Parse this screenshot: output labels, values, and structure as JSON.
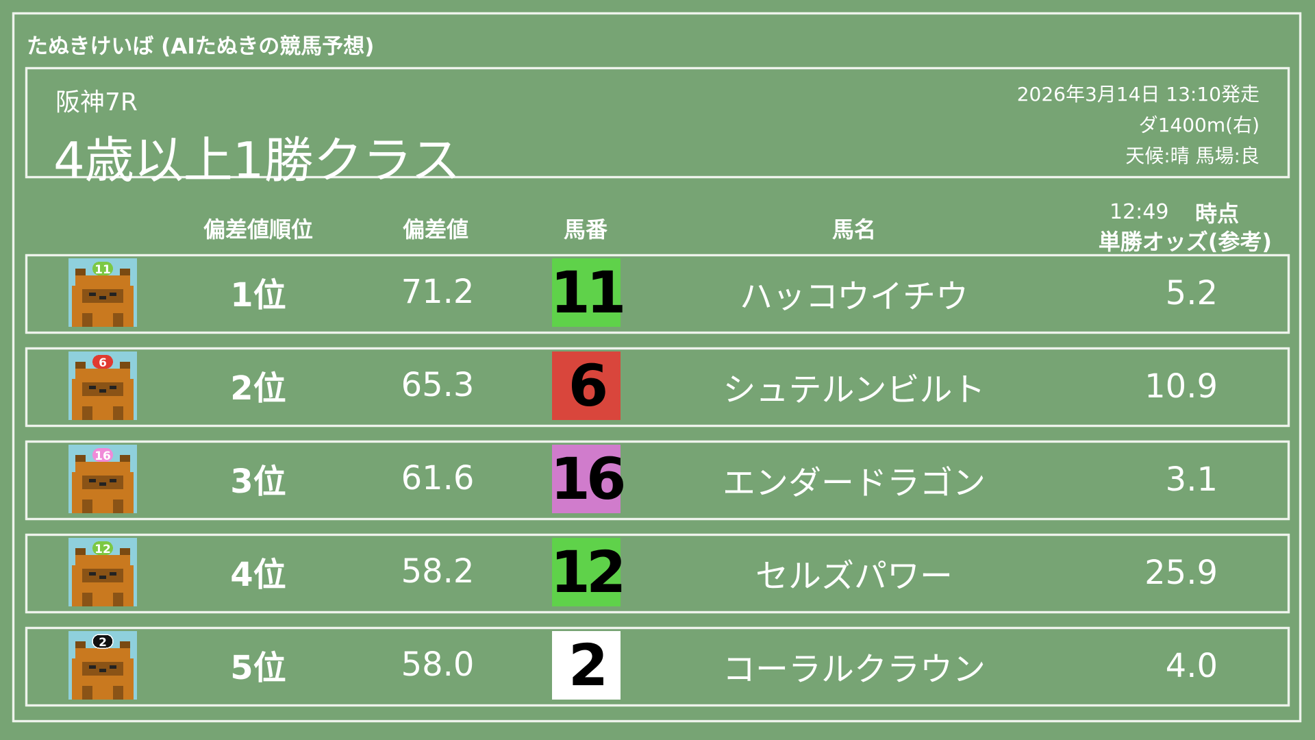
{
  "app_title": "たぬきけいば (AIたぬきの競馬予想)",
  "race": {
    "venue_round": "阪神7R",
    "name": "4歳以上1勝クラス",
    "datetime": "2026年3月14日 13:10発走",
    "course": "ダ1400m(右)",
    "conditions": "天候:晴 馬場:良"
  },
  "columns": {
    "rank": "偏差値順位",
    "score": "偏差値",
    "number": "馬番",
    "name": "馬名",
    "odds_time": "12:49",
    "odds_time_suffix": "時点",
    "odds": "単勝オッズ(参考)"
  },
  "rows": [
    {
      "rank": "1位",
      "score": "71.2",
      "number": "11",
      "name": "ハッコウイチウ",
      "odds": "5.2",
      "number_color": "#5fd24a",
      "cap_color": "#7cc843"
    },
    {
      "rank": "2位",
      "score": "65.3",
      "number": "6",
      "name": "シュテルンビルト",
      "odds": "10.9",
      "number_color": "#d9463c",
      "cap_color": "#e03a30"
    },
    {
      "rank": "3位",
      "score": "61.6",
      "number": "16",
      "name": "エンダードラゴン",
      "odds": "3.1",
      "number_color": "#d07ccc",
      "cap_color": "#f08ad8"
    },
    {
      "rank": "4位",
      "score": "58.2",
      "number": "12",
      "name": "セルズパワー",
      "odds": "25.9",
      "number_color": "#5fd24a",
      "cap_color": "#7cc843"
    },
    {
      "rank": "5位",
      "score": "58.0",
      "number": "2",
      "name": "コーラルクラウン",
      "odds": "4.0",
      "number_color": "#ffffff",
      "cap_color": "#111111"
    }
  ],
  "colors": {
    "background": "#77a474",
    "chalk": "#eef3ec",
    "avatar_bg": "#8fd0dc",
    "tanuki": "#c9791f"
  }
}
